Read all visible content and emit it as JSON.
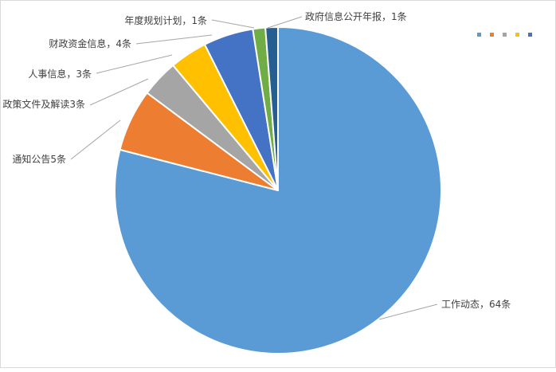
{
  "chart_data": {
    "type": "pie",
    "title": "",
    "start_angle": "12 o'clock, clockwise",
    "legend": {
      "placement": "top-right",
      "show_text": false
    },
    "slices": [
      {
        "category": "工作动态",
        "value": 64,
        "label": "工作动态，64条",
        "color": "#5B9BD5"
      },
      {
        "category": "通知公告",
        "value": 5,
        "label": "通知公告5条",
        "color": "#ED7D31"
      },
      {
        "category": "政策文件及解读",
        "value": 3,
        "label": "政策文件及解读3条",
        "color": "#A5A5A5"
      },
      {
        "category": "人事信息",
        "value": 3,
        "label": "人事信息，3条",
        "color": "#FFC000"
      },
      {
        "category": "财政资金信息",
        "value": 4,
        "label": "财政资金信息，4条",
        "color": "#4472C4"
      },
      {
        "category": "年度规划计划",
        "value": 1,
        "label": "年度规划计划，1条",
        "color": "#70AD47"
      },
      {
        "category": "政府信息公开年报",
        "value": 1,
        "label": "政府信息公开年报，1条",
        "color": "#255E91"
      }
    ],
    "legend_colors": [
      "#5B9BD5",
      "#ED7D31",
      "#A5A5A5",
      "#FFC000",
      "#4472C4"
    ]
  }
}
